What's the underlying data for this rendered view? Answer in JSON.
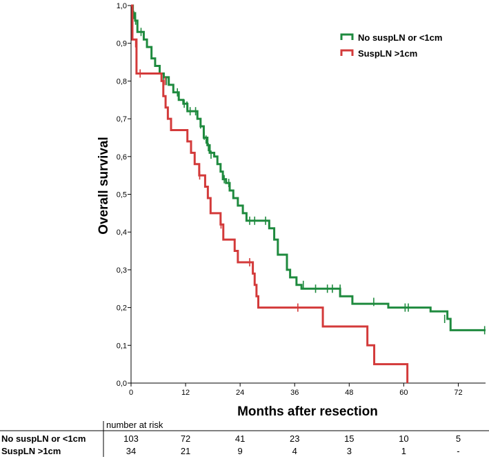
{
  "chart_data": {
    "type": "line",
    "title": "",
    "xlabel": "Months after resection",
    "ylabel": "Overall survival",
    "xlim": [
      0,
      78
    ],
    "ylim": [
      0,
      1
    ],
    "x_ticks": [
      0,
      12,
      24,
      36,
      48,
      60,
      72
    ],
    "x_tick_labels": [
      "0",
      "12",
      "24",
      "36",
      "48",
      "60",
      "72"
    ],
    "y_ticks": [
      0,
      0.1,
      0.2,
      0.3,
      0.4,
      0.5,
      0.6,
      0.7,
      0.8,
      0.9,
      1.0
    ],
    "y_tick_labels": [
      "0,0",
      "0,1",
      "0,2",
      "0,3",
      "0,4",
      "0,5",
      "0,6",
      "0,7",
      "0,8",
      "0,9",
      "1,0"
    ],
    "legend_position": "top-right",
    "series": [
      {
        "name": "No suspLN or <1cm",
        "color": "#1e8a3e",
        "steps": [
          [
            0,
            1.0
          ],
          [
            0.4,
            0.98
          ],
          [
            0.9,
            0.96
          ],
          [
            1.4,
            0.93
          ],
          [
            2.8,
            0.91
          ],
          [
            3.5,
            0.89
          ],
          [
            4.5,
            0.86
          ],
          [
            5.3,
            0.84
          ],
          [
            6.3,
            0.82
          ],
          [
            7.2,
            0.81
          ],
          [
            8.3,
            0.79
          ],
          [
            9.3,
            0.77
          ],
          [
            10.5,
            0.75
          ],
          [
            11.5,
            0.74
          ],
          [
            12.4,
            0.72
          ],
          [
            14.6,
            0.7
          ],
          [
            15.3,
            0.68
          ],
          [
            16.0,
            0.65
          ],
          [
            16.8,
            0.63
          ],
          [
            17.3,
            0.61
          ],
          [
            18.3,
            0.6
          ],
          [
            19.0,
            0.58
          ],
          [
            19.7,
            0.56
          ],
          [
            20.2,
            0.54
          ],
          [
            20.9,
            0.53
          ],
          [
            21.7,
            0.51
          ],
          [
            22.5,
            0.49
          ],
          [
            23.5,
            0.47
          ],
          [
            24.6,
            0.45
          ],
          [
            25.4,
            0.43
          ],
          [
            30.4,
            0.41
          ],
          [
            31.5,
            0.38
          ],
          [
            32.3,
            0.34
          ],
          [
            34.3,
            0.3
          ],
          [
            35.0,
            0.28
          ],
          [
            36.4,
            0.26
          ],
          [
            37.5,
            0.25
          ],
          [
            46.0,
            0.23
          ],
          [
            48.7,
            0.21
          ],
          [
            56.6,
            0.2
          ],
          [
            65.9,
            0.19
          ],
          [
            69.6,
            0.17
          ],
          [
            70.3,
            0.14
          ],
          [
            78,
            0.14
          ]
        ],
        "censors": [
          [
            0.6,
            0.975
          ],
          [
            1.0,
            0.96
          ],
          [
            2.2,
            0.93
          ],
          [
            7.1,
            0.81
          ],
          [
            7.8,
            0.8
          ],
          [
            10.2,
            0.77
          ],
          [
            11.7,
            0.74
          ],
          [
            12.3,
            0.735
          ],
          [
            13.0,
            0.72
          ],
          [
            14.2,
            0.72
          ],
          [
            15.3,
            0.685
          ],
          [
            16.1,
            0.655
          ],
          [
            16.5,
            0.645
          ],
          [
            17.0,
            0.625
          ],
          [
            17.6,
            0.605
          ],
          [
            20.5,
            0.54
          ],
          [
            21.5,
            0.53
          ],
          [
            26.1,
            0.43
          ],
          [
            27.2,
            0.43
          ],
          [
            29.6,
            0.43
          ],
          [
            37.9,
            0.26
          ],
          [
            40.6,
            0.25
          ],
          [
            43.2,
            0.25
          ],
          [
            44.3,
            0.25
          ],
          [
            46.0,
            0.25
          ],
          [
            53.4,
            0.215
          ],
          [
            60.3,
            0.2
          ],
          [
            61.0,
            0.2
          ],
          [
            69.0,
            0.17
          ],
          [
            77.8,
            0.14
          ]
        ]
      },
      {
        "name": "SuspLN >1cm",
        "color": "#d33a3a",
        "steps": [
          [
            0,
            1.0
          ],
          [
            0.3,
            0.91
          ],
          [
            1.2,
            0.82
          ],
          [
            6.7,
            0.8
          ],
          [
            7.1,
            0.76
          ],
          [
            7.6,
            0.73
          ],
          [
            8.1,
            0.7
          ],
          [
            8.8,
            0.67
          ],
          [
            12.4,
            0.64
          ],
          [
            13.2,
            0.61
          ],
          [
            14.0,
            0.58
          ],
          [
            15.0,
            0.55
          ],
          [
            16.3,
            0.52
          ],
          [
            16.9,
            0.49
          ],
          [
            17.5,
            0.45
          ],
          [
            19.7,
            0.42
          ],
          [
            20.3,
            0.38
          ],
          [
            22.8,
            0.35
          ],
          [
            23.5,
            0.32
          ],
          [
            26.8,
            0.29
          ],
          [
            27.2,
            0.26
          ],
          [
            27.6,
            0.23
          ],
          [
            28.0,
            0.2
          ],
          [
            42.2,
            0.15
          ],
          [
            52.0,
            0.1
          ],
          [
            53.5,
            0.05
          ],
          [
            60.8,
            0.0
          ]
        ],
        "censors": [
          [
            1.0,
            0.9
          ],
          [
            2.0,
            0.82
          ],
          [
            7.5,
            0.8
          ],
          [
            15.1,
            0.55
          ],
          [
            19.8,
            0.42
          ],
          [
            26.1,
            0.32
          ],
          [
            36.7,
            0.2
          ]
        ]
      }
    ]
  },
  "risk_table": {
    "title": "number at risk",
    "rows": [
      {
        "label": "No suspLN or <1cm",
        "values": [
          "103",
          "72",
          "41",
          "23",
          "15",
          "10",
          "5"
        ]
      },
      {
        "label": "SuspLN >1cm",
        "values": [
          "34",
          "21",
          "9",
          "4",
          "3",
          "1",
          "-"
        ]
      }
    ]
  }
}
